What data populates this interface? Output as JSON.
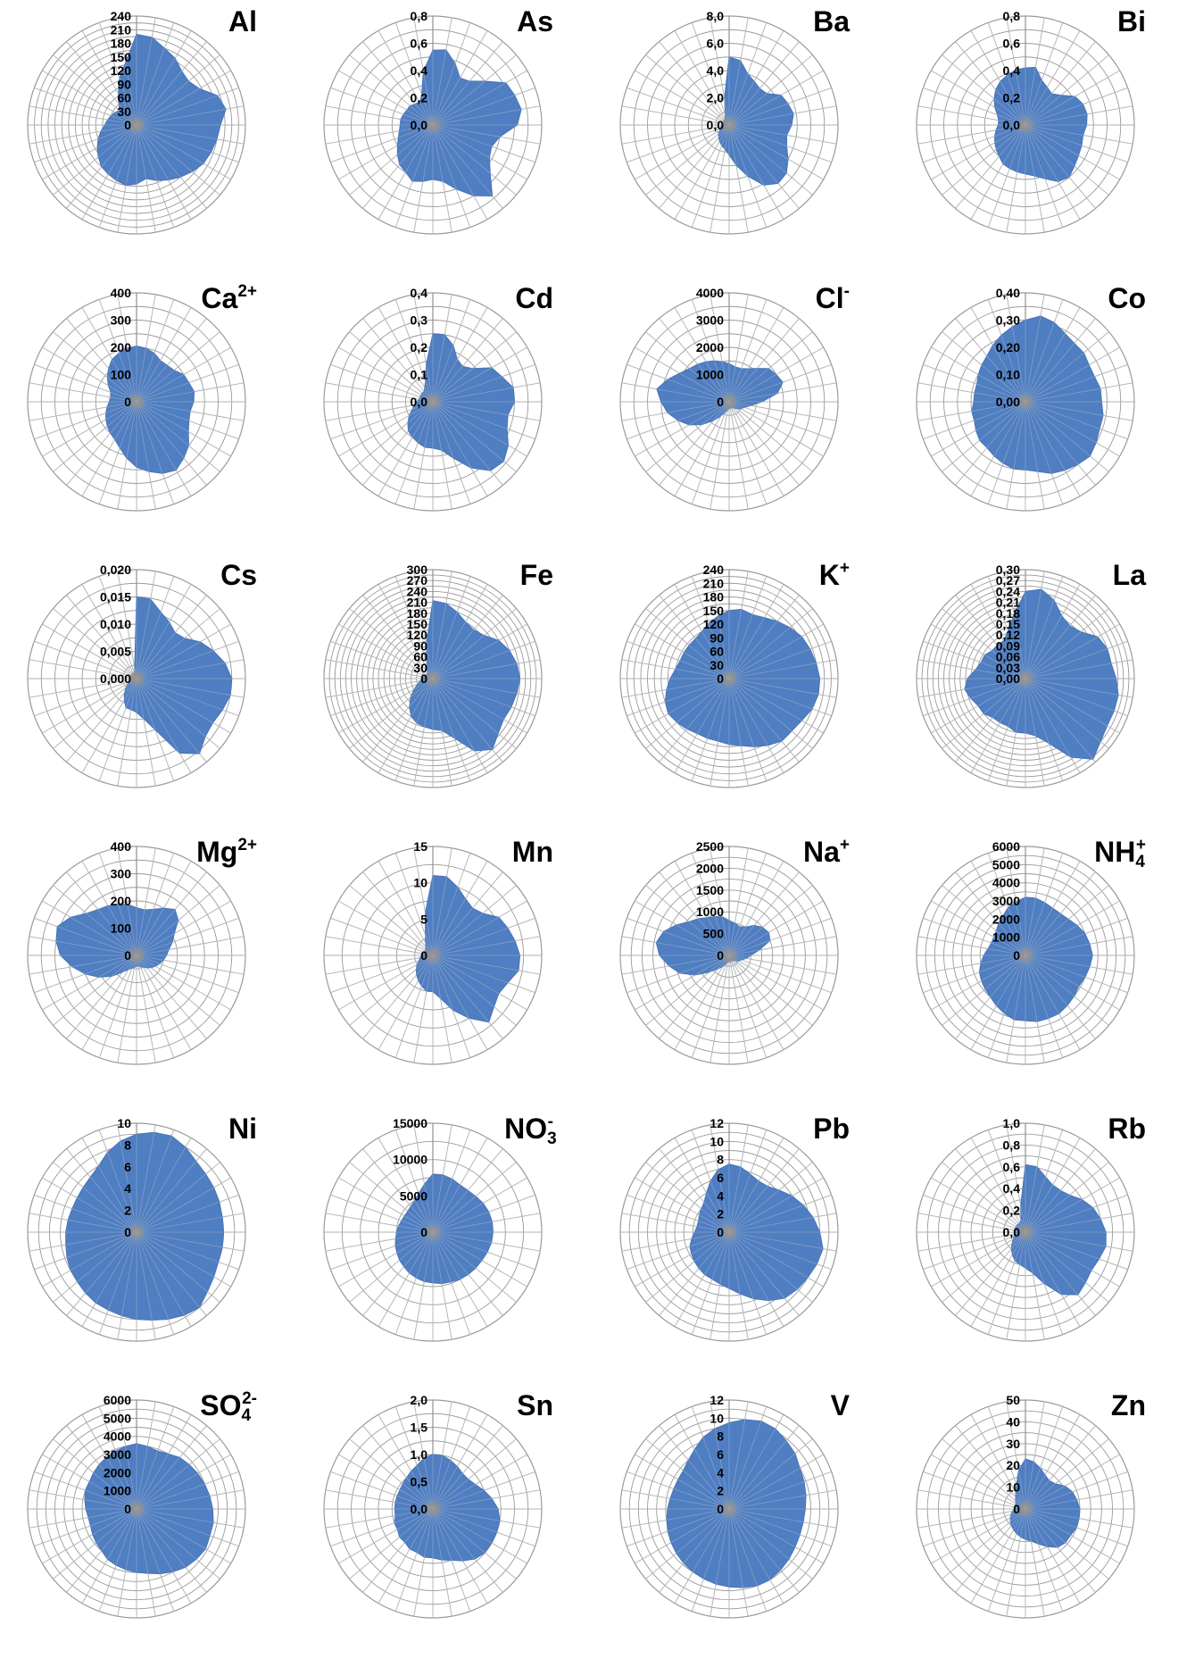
{
  "chart_data": [
    {
      "type": "radar",
      "title": "Al",
      "title_sup": "",
      "title_sub": "",
      "tick_labels": [
        "0",
        "30",
        "60",
        "90",
        "120",
        "150",
        "180",
        "210",
        "240"
      ],
      "rmax": 240,
      "values": [
        200,
        196,
        180,
        170,
        155,
        150,
        160,
        190,
        200,
        185,
        180,
        175,
        170,
        160,
        150,
        140,
        130,
        120,
        130,
        135,
        130,
        125,
        120,
        110,
        100,
        90,
        80,
        70,
        65,
        60,
        55,
        50,
        60,
        80,
        110,
        140
      ]
    },
    {
      "type": "radar",
      "title": "As",
      "title_sup": "",
      "title_sub": "",
      "tick_labels": [
        "0,0",
        "0,2",
        "0,4",
        "0,6",
        "0,8"
      ],
      "rmax": 0.8,
      "values": [
        0.55,
        0.56,
        0.48,
        0.4,
        0.42,
        0.5,
        0.62,
        0.64,
        0.66,
        0.62,
        0.5,
        0.46,
        0.48,
        0.55,
        0.68,
        0.6,
        0.5,
        0.42,
        0.4,
        0.42,
        0.44,
        0.4,
        0.38,
        0.34,
        0.3,
        0.27,
        0.25,
        0.24,
        0.24,
        0.23,
        0.22,
        0.22,
        0.2,
        0.19,
        0.24,
        0.4
      ]
    },
    {
      "type": "radar",
      "title": "Ba",
      "title_sup": "",
      "title_sub": "",
      "tick_labels": [
        "0,0",
        "2,0",
        "4,0",
        "6,0",
        "8,0"
      ],
      "rmax": 8.0,
      "values": [
        5.0,
        4.8,
        4.0,
        3.7,
        3.5,
        3.6,
        4.4,
        4.6,
        4.8,
        4.6,
        4.3,
        4.5,
        5.0,
        5.5,
        5.6,
        5.1,
        4.0,
        3.0,
        2.2,
        1.8,
        1.6,
        1.4,
        1.2,
        1.0,
        0.8,
        0.7,
        0.6,
        0.5,
        0.5,
        0.5,
        0.5,
        0.5,
        0.5,
        0.6,
        0.8,
        2.0
      ]
    },
    {
      "type": "radar",
      "title": "Bi",
      "title_sup": "",
      "title_sub": "",
      "tick_labels": [
        "0,0",
        "0,2",
        "0,4",
        "0,6",
        "0,8"
      ],
      "rmax": 0.8,
      "values": [
        0.42,
        0.43,
        0.35,
        0.32,
        0.3,
        0.34,
        0.42,
        0.45,
        0.46,
        0.45,
        0.43,
        0.44,
        0.45,
        0.47,
        0.5,
        0.48,
        0.42,
        0.38,
        0.36,
        0.35,
        0.34,
        0.33,
        0.3,
        0.28,
        0.26,
        0.24,
        0.22,
        0.2,
        0.2,
        0.22,
        0.26,
        0.3,
        0.34,
        0.37,
        0.39,
        0.41
      ]
    },
    {
      "type": "radar",
      "title": "Ca",
      "title_sup": "2+",
      "title_sub": "",
      "tick_labels": [
        "0",
        "100",
        "200",
        "300",
        "400"
      ],
      "rmax": 400,
      "values": [
        205,
        200,
        190,
        175,
        175,
        180,
        200,
        205,
        215,
        210,
        200,
        205,
        220,
        250,
        270,
        290,
        280,
        260,
        240,
        210,
        180,
        160,
        150,
        140,
        130,
        120,
        110,
        100,
        95,
        100,
        120,
        140,
        160,
        180,
        190,
        200
      ]
    },
    {
      "type": "radar",
      "title": "Cd",
      "title_sup": "",
      "title_sub": "",
      "tick_labels": [
        "0,0",
        "0,1",
        "0,2",
        "0,3",
        "0,4"
      ],
      "rmax": 0.4,
      "values": [
        0.25,
        0.25,
        0.22,
        0.18,
        0.17,
        0.19,
        0.25,
        0.27,
        0.3,
        0.3,
        0.28,
        0.29,
        0.32,
        0.34,
        0.33,
        0.28,
        0.22,
        0.18,
        0.17,
        0.17,
        0.16,
        0.15,
        0.14,
        0.12,
        0.1,
        0.08,
        0.07,
        0.06,
        0.05,
        0.05,
        0.05,
        0.05,
        0.05,
        0.06,
        0.08,
        0.14
      ]
    },
    {
      "type": "radar",
      "title": "Cl",
      "title_sup": "-",
      "title_sub": "",
      "tick_labels": [
        "0",
        "1000",
        "2000",
        "3000",
        "4000"
      ],
      "rmax": 4000,
      "values": [
        1400,
        1300,
        1300,
        1400,
        1600,
        1900,
        2000,
        2100,
        1800,
        1200,
        800,
        600,
        500,
        400,
        300,
        250,
        200,
        200,
        250,
        300,
        400,
        600,
        900,
        1300,
        1700,
        2000,
        2300,
        2500,
        2700,
        2400,
        2100,
        1900,
        1800,
        1700,
        1600,
        1500
      ]
    },
    {
      "type": "radar",
      "title": "Co",
      "title_sup": "",
      "title_sub": "",
      "tick_labels": [
        "0,00",
        "0,10",
        "0,20",
        "0,30",
        "0,40"
      ],
      "rmax": 0.4,
      "values": [
        0.3,
        0.32,
        0.31,
        0.29,
        0.28,
        0.28,
        0.27,
        0.27,
        0.28,
        0.28,
        0.29,
        0.29,
        0.3,
        0.31,
        0.3,
        0.29,
        0.28,
        0.26,
        0.25,
        0.25,
        0.24,
        0.23,
        0.22,
        0.22,
        0.21,
        0.2,
        0.2,
        0.19,
        0.19,
        0.19,
        0.2,
        0.21,
        0.22,
        0.24,
        0.26,
        0.28
      ]
    },
    {
      "type": "radar",
      "title": "Cs",
      "title_sup": "",
      "title_sub": "",
      "tick_labels": [
        "0,000",
        "0,005",
        "0,010",
        "0,015",
        "0,020"
      ],
      "rmax": 0.02,
      "values": [
        0.015,
        0.0148,
        0.013,
        0.012,
        0.011,
        0.0115,
        0.0135,
        0.015,
        0.0165,
        0.0175,
        0.0175,
        0.0168,
        0.0162,
        0.0165,
        0.018,
        0.0158,
        0.01,
        0.0075,
        0.0062,
        0.0058,
        0.0057,
        0.0045,
        0.0035,
        0.0025,
        0.0018,
        0.0014,
        0.0012,
        0.001,
        0.0009,
        0.0008,
        0.0008,
        0.0008,
        0.0008,
        0.0008,
        0.001,
        0.002
      ]
    },
    {
      "type": "radar",
      "title": "Fe",
      "title_sup": "",
      "title_sub": "",
      "tick_labels": [
        "0",
        "30",
        "60",
        "90",
        "120",
        "150",
        "180",
        "210",
        "240",
        "270",
        "300"
      ],
      "rmax": 300,
      "values": [
        215,
        210,
        195,
        180,
        175,
        185,
        210,
        225,
        235,
        240,
        235,
        230,
        225,
        235,
        255,
        230,
        175,
        145,
        140,
        135,
        130,
        120,
        100,
        80,
        60,
        45,
        35,
        30,
        25,
        22,
        20,
        20,
        22,
        30,
        50,
        100
      ]
    },
    {
      "type": "radar",
      "title": "K",
      "title_sup": "+",
      "title_sub": "",
      "tick_labels": [
        "0",
        "30",
        "60",
        "90",
        "120",
        "150",
        "180",
        "210",
        "240"
      ],
      "rmax": 240,
      "values": [
        150,
        155,
        150,
        155,
        165,
        175,
        185,
        190,
        195,
        200,
        200,
        195,
        185,
        180,
        180,
        170,
        160,
        150,
        145,
        140,
        140,
        140,
        145,
        150,
        155,
        150,
        140,
        130,
        120,
        115,
        115,
        115,
        115,
        120,
        130,
        140
      ]
    },
    {
      "type": "radar",
      "title": "La",
      "title_sup": "",
      "title_sub": "",
      "tick_labels": [
        "0,00",
        "0,03",
        "0,06",
        "0,09",
        "0,12",
        "0,15",
        "0,18",
        "0,21",
        "0,24",
        "0,27",
        "0,30"
      ],
      "rmax": 0.3,
      "values": [
        0.24,
        0.25,
        0.23,
        0.2,
        0.19,
        0.2,
        0.23,
        0.24,
        0.24,
        0.25,
        0.26,
        0.26,
        0.26,
        0.27,
        0.29,
        0.25,
        0.19,
        0.16,
        0.15,
        0.15,
        0.14,
        0.14,
        0.14,
        0.15,
        0.15,
        0.16,
        0.17,
        0.16,
        0.14,
        0.13,
        0.13,
        0.12,
        0.12,
        0.12,
        0.14,
        0.18
      ]
    },
    {
      "type": "radar",
      "title": "Mg",
      "title_sup": "2+",
      "title_sub": "",
      "tick_labels": [
        "0",
        "100",
        "200",
        "300",
        "400"
      ],
      "rmax": 400,
      "values": [
        175,
        170,
        180,
        200,
        220,
        200,
        160,
        140,
        120,
        110,
        100,
        90,
        80,
        70,
        60,
        50,
        45,
        40,
        40,
        45,
        50,
        60,
        80,
        120,
        160,
        200,
        240,
        280,
        300,
        310,
        280,
        240,
        220,
        210,
        200,
        190
      ]
    },
    {
      "type": "radar",
      "title": "Mn",
      "title_sup": "",
      "title_sub": "",
      "tick_labels": [
        "0",
        "5",
        "10",
        "15"
      ],
      "rmax": 15,
      "values": [
        11,
        11,
        10,
        9,
        8.5,
        9,
        10.5,
        11,
        11.5,
        12,
        12,
        11,
        10.5,
        11,
        12,
        10,
        8,
        6,
        5,
        5,
        4.5,
        4,
        3.5,
        3,
        2.5,
        2,
        1.8,
        1.5,
        1.3,
        1.2,
        1.2,
        1.3,
        1.5,
        2,
        3,
        6
      ]
    },
    {
      "type": "radar",
      "title": "Na",
      "title_sup": "+",
      "title_sub": "",
      "tick_labels": [
        "0",
        "500",
        "1000",
        "1500",
        "2000",
        "2500"
      ],
      "rmax": 2500,
      "values": [
        800,
        750,
        700,
        750,
        900,
        1000,
        1050,
        1000,
        700,
        500,
        400,
        300,
        250,
        200,
        150,
        120,
        100,
        100,
        120,
        150,
        200,
        300,
        400,
        600,
        900,
        1200,
        1400,
        1600,
        1700,
        1600,
        1400,
        1200,
        1100,
        1000,
        950,
        900
      ]
    },
    {
      "type": "radar",
      "title": "NH",
      "title_sup": "+",
      "title_sub": "4",
      "tick_labels": [
        "0",
        "1000",
        "2000",
        "3000",
        "4000",
        "5000",
        "6000"
      ],
      "rmax": 6000,
      "values": [
        3200,
        3200,
        3100,
        3000,
        3000,
        3100,
        3300,
        3500,
        3600,
        3700,
        3600,
        3500,
        3400,
        3500,
        3600,
        3700,
        3700,
        3700,
        3600,
        3600,
        3400,
        3200,
        3000,
        2900,
        2800,
        2700,
        2500,
        2300,
        2100,
        2000,
        2000,
        2100,
        2300,
        2500,
        2800,
        3000
      ]
    },
    {
      "type": "radar",
      "title": "Ni",
      "title_sup": "",
      "title_sub": "",
      "tick_labels": [
        "0",
        "2",
        "4",
        "6",
        "8",
        "10"
      ],
      "rmax": 10,
      "values": [
        9,
        9.3,
        9.4,
        9,
        8.5,
        8.3,
        8.2,
        8.1,
        8,
        8,
        8,
        8,
        8.2,
        8.5,
        9,
        8.8,
        8.5,
        8.2,
        8,
        7.8,
        7.6,
        7.5,
        7.3,
        7.1,
        7,
        6.8,
        6.6,
        6.5,
        6.4,
        6.3,
        6.3,
        6.4,
        6.6,
        7,
        7.8,
        8.5
      ]
    },
    {
      "type": "radar",
      "title": "NO",
      "title_sup": "-",
      "title_sub": "3",
      "tick_labels": [
        "0",
        "5000",
        "10000",
        "15000"
      ],
      "rmax": 15000,
      "values": [
        8000,
        8000,
        7800,
        7500,
        7500,
        7700,
        8000,
        8200,
        8300,
        8300,
        8200,
        8000,
        7800,
        7700,
        7600,
        7500,
        7300,
        7200,
        7000,
        6900,
        6700,
        6500,
        6200,
        6000,
        5700,
        5500,
        5200,
        5000,
        4800,
        4600,
        4500,
        4500,
        4700,
        5000,
        5700,
        6700
      ]
    },
    {
      "type": "radar",
      "title": "Pb",
      "title_sup": "",
      "title_sub": "",
      "tick_labels": [
        "0",
        "2",
        "4",
        "6",
        "8",
        "10",
        "12"
      ],
      "rmax": 12,
      "values": [
        7.5,
        7.3,
        6.8,
        6.5,
        6.6,
        7.2,
        8,
        8.7,
        9.4,
        10,
        10.5,
        10.3,
        10,
        9.8,
        9.5,
        8.7,
        7.8,
        6.9,
        6.2,
        5.8,
        5.5,
        5.4,
        5.2,
        5,
        4.8,
        4.6,
        4.2,
        3.8,
        3.6,
        3.6,
        3.8,
        4,
        4.3,
        5,
        6,
        7
      ]
    },
    {
      "type": "radar",
      "title": "Rb",
      "title_sup": "",
      "title_sub": "",
      "tick_labels": [
        "0,0",
        "0,2",
        "0,4",
        "0,6",
        "0,8",
        "1,0"
      ],
      "rmax": 1.0,
      "values": [
        0.62,
        0.61,
        0.54,
        0.5,
        0.5,
        0.53,
        0.6,
        0.66,
        0.7,
        0.74,
        0.75,
        0.72,
        0.7,
        0.72,
        0.75,
        0.66,
        0.5,
        0.38,
        0.33,
        0.3,
        0.28,
        0.24,
        0.2,
        0.16,
        0.13,
        0.11,
        0.1,
        0.1,
        0.1,
        0.1,
        0.1,
        0.1,
        0.1,
        0.1,
        0.12,
        0.25
      ]
    },
    {
      "type": "radar",
      "title": "SO",
      "title_sup": "2-",
      "title_sub": "4",
      "tick_labels": [
        "0",
        "1000",
        "2000",
        "3000",
        "4000",
        "5000",
        "6000"
      ],
      "rmax": 6000,
      "values": [
        3600,
        3500,
        3400,
        3500,
        3700,
        3800,
        3900,
        4000,
        4100,
        4200,
        4300,
        4300,
        4400,
        4300,
        4200,
        4000,
        3800,
        3600,
        3500,
        3400,
        3300,
        3200,
        3000,
        2900,
        2800,
        2700,
        2700,
        2800,
        2900,
        3000,
        3000,
        3100,
        3200,
        3300,
        3400,
        3500
      ]
    },
    {
      "type": "radar",
      "title": "Sn",
      "title_sup": "",
      "title_sub": "",
      "tick_labels": [
        "0,0",
        "0,5",
        "1,0",
        "1,5",
        "2,0"
      ],
      "rmax": 2.0,
      "values": [
        1.0,
        1.0,
        0.95,
        0.9,
        0.85,
        0.85,
        0.9,
        1.0,
        1.1,
        1.2,
        1.25,
        1.25,
        1.25,
        1.25,
        1.2,
        1.1,
        1.0,
        0.95,
        0.9,
        0.9,
        0.85,
        0.85,
        0.8,
        0.8,
        0.75,
        0.75,
        0.7,
        0.7,
        0.7,
        0.7,
        0.7,
        0.72,
        0.75,
        0.8,
        0.85,
        0.95
      ]
    },
    {
      "type": "radar",
      "title": "V",
      "title_sup": "",
      "title_sub": "",
      "tick_labels": [
        "0",
        "2",
        "4",
        "6",
        "8",
        "10",
        "12"
      ],
      "rmax": 12,
      "values": [
        9.5,
        10,
        10.3,
        10.2,
        9.8,
        9.5,
        9,
        8.8,
        8.6,
        8.4,
        8.3,
        8.3,
        8.4,
        8.6,
        8.8,
        9,
        9,
        8.8,
        8.6,
        8.4,
        8.2,
        8,
        7.8,
        7.6,
        7.4,
        7.2,
        7,
        6.8,
        6.6,
        6.5,
        6.5,
        6.6,
        7,
        7.6,
        8.4,
        9
      ]
    },
    {
      "type": "radar",
      "title": "Zn",
      "title_sup": "",
      "title_sub": "",
      "tick_labels": [
        "0",
        "10",
        "20",
        "30",
        "40",
        "50"
      ],
      "rmax": 50,
      "values": [
        23,
        22,
        20,
        18,
        17,
        18,
        21,
        23,
        24,
        25,
        25,
        25,
        24,
        24,
        23,
        20,
        17,
        15,
        14,
        13,
        12,
        11,
        10,
        9,
        8,
        7,
        6,
        5,
        5,
        5,
        5,
        6,
        7,
        9,
        12,
        18
      ]
    }
  ]
}
